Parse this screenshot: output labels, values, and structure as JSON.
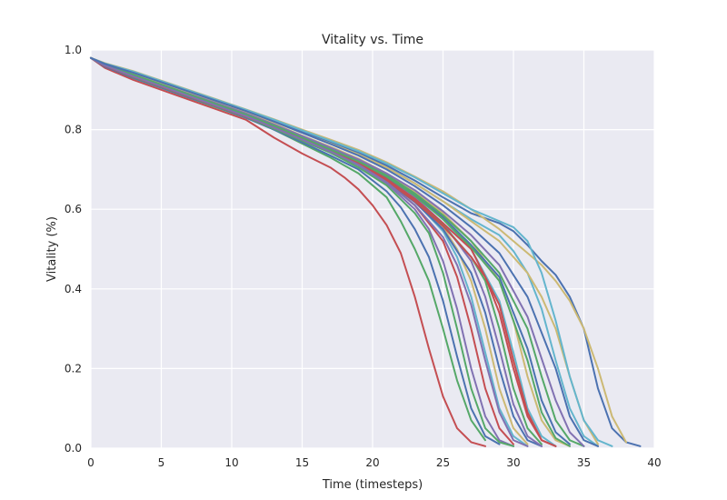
{
  "chart_data": {
    "type": "line",
    "title": "Vitality vs. Time",
    "xlabel": "Time (timesteps)",
    "ylabel": "Vitality (%)",
    "xlim": [
      0,
      40
    ],
    "ylim": [
      0.0,
      1.0
    ],
    "xticks": [
      "0",
      "5",
      "10",
      "15",
      "20",
      "25",
      "30",
      "35",
      "40"
    ],
    "yticks": [
      "0.0",
      "0.2",
      "0.4",
      "0.6",
      "0.8",
      "1.0"
    ],
    "grid": true,
    "legend": "none",
    "background": "#eaeaf2",
    "palette": [
      "#4c72b0",
      "#55a868",
      "#c44e52",
      "#8172b2",
      "#ccb974",
      "#64b5cd"
    ],
    "series": [
      {
        "color": "#c44e52",
        "x": [
          0,
          1,
          3,
          5,
          7,
          9,
          11,
          13,
          15,
          17,
          18,
          19,
          20,
          21,
          22,
          23,
          24,
          25,
          26,
          27,
          28
        ],
        "y": [
          0.98,
          0.955,
          0.925,
          0.9,
          0.875,
          0.85,
          0.825,
          0.78,
          0.74,
          0.705,
          0.68,
          0.65,
          0.61,
          0.56,
          0.49,
          0.38,
          0.25,
          0.13,
          0.05,
          0.015,
          0.005
        ]
      },
      {
        "color": "#55a868",
        "x": [
          0,
          1,
          3,
          5,
          7,
          9,
          11,
          13,
          15,
          17,
          19,
          21,
          22,
          23,
          24,
          25,
          26,
          27,
          28
        ],
        "y": [
          0.98,
          0.96,
          0.93,
          0.905,
          0.88,
          0.855,
          0.83,
          0.8,
          0.765,
          0.73,
          0.69,
          0.63,
          0.57,
          0.5,
          0.42,
          0.3,
          0.17,
          0.07,
          0.02
        ]
      },
      {
        "color": "#4c72b0",
        "x": [
          0,
          1,
          3,
          5,
          7,
          9,
          11,
          13,
          15,
          17,
          19,
          21,
          22,
          23,
          24,
          25,
          26,
          27,
          28,
          29
        ],
        "y": [
          0.98,
          0.958,
          0.93,
          0.905,
          0.88,
          0.856,
          0.83,
          0.8,
          0.768,
          0.735,
          0.7,
          0.645,
          0.605,
          0.55,
          0.48,
          0.37,
          0.23,
          0.1,
          0.03,
          0.01
        ]
      },
      {
        "color": "#8172b2",
        "x": [
          0,
          1,
          3,
          5,
          7,
          9,
          11,
          13,
          15,
          17,
          19,
          21,
          23,
          24,
          25,
          26,
          27,
          28,
          29,
          30
        ],
        "y": [
          0.98,
          0.962,
          0.935,
          0.91,
          0.885,
          0.86,
          0.835,
          0.805,
          0.775,
          0.745,
          0.71,
          0.665,
          0.6,
          0.55,
          0.47,
          0.35,
          0.2,
          0.08,
          0.02,
          0.005
        ]
      },
      {
        "color": "#55a868",
        "x": [
          0,
          1,
          3,
          5,
          7,
          9,
          11,
          13,
          15,
          17,
          19,
          21,
          23,
          24,
          25,
          26,
          27,
          28,
          29,
          30
        ],
        "y": [
          0.98,
          0.96,
          0.932,
          0.907,
          0.882,
          0.857,
          0.832,
          0.802,
          0.772,
          0.742,
          0.705,
          0.66,
          0.59,
          0.54,
          0.44,
          0.3,
          0.15,
          0.05,
          0.015,
          0.005
        ]
      },
      {
        "color": "#c44e52",
        "x": [
          0,
          1,
          3,
          5,
          7,
          9,
          11,
          13,
          15,
          17,
          19,
          21,
          23,
          25,
          26,
          27,
          28,
          29,
          30
        ],
        "y": [
          0.98,
          0.962,
          0.937,
          0.912,
          0.887,
          0.862,
          0.837,
          0.808,
          0.778,
          0.748,
          0.715,
          0.67,
          0.61,
          0.52,
          0.43,
          0.3,
          0.15,
          0.05,
          0.01
        ]
      },
      {
        "color": "#64b5cd",
        "x": [
          0,
          1,
          3,
          5,
          7,
          9,
          11,
          13,
          15,
          17,
          19,
          21,
          23,
          25,
          26,
          27,
          28,
          29,
          30,
          31
        ],
        "y": [
          0.98,
          0.963,
          0.938,
          0.913,
          0.888,
          0.863,
          0.838,
          0.81,
          0.78,
          0.75,
          0.718,
          0.675,
          0.62,
          0.545,
          0.48,
          0.38,
          0.24,
          0.1,
          0.03,
          0.005
        ]
      },
      {
        "color": "#ccb974",
        "x": [
          0,
          1,
          3,
          5,
          7,
          9,
          11,
          13,
          15,
          17,
          19,
          21,
          23,
          25,
          26,
          27,
          28,
          29,
          30,
          31
        ],
        "y": [
          0.98,
          0.964,
          0.94,
          0.915,
          0.89,
          0.865,
          0.84,
          0.812,
          0.782,
          0.752,
          0.72,
          0.68,
          0.625,
          0.555,
          0.5,
          0.42,
          0.3,
          0.15,
          0.05,
          0.01
        ]
      },
      {
        "color": "#4c72b0",
        "x": [
          0,
          1,
          3,
          5,
          7,
          9,
          11,
          13,
          15,
          17,
          19,
          21,
          23,
          25,
          27,
          28,
          29,
          30,
          31,
          32
        ],
        "y": [
          0.98,
          0.961,
          0.935,
          0.91,
          0.885,
          0.86,
          0.835,
          0.806,
          0.776,
          0.746,
          0.714,
          0.672,
          0.618,
          0.55,
          0.44,
          0.34,
          0.2,
          0.08,
          0.02,
          0.005
        ]
      },
      {
        "color": "#8172b2",
        "x": [
          0,
          1,
          3,
          5,
          7,
          9,
          11,
          13,
          15,
          17,
          19,
          21,
          23,
          25,
          27,
          28,
          29,
          30,
          31,
          32
        ],
        "y": [
          0.98,
          0.963,
          0.938,
          0.913,
          0.888,
          0.863,
          0.838,
          0.81,
          0.78,
          0.75,
          0.72,
          0.68,
          0.63,
          0.565,
          0.47,
          0.38,
          0.25,
          0.11,
          0.03,
          0.005
        ]
      },
      {
        "color": "#55a868",
        "x": [
          0,
          1,
          3,
          5,
          7,
          9,
          11,
          13,
          15,
          17,
          19,
          21,
          23,
          25,
          27,
          28,
          29,
          30,
          31,
          32
        ],
        "y": [
          0.98,
          0.962,
          0.937,
          0.912,
          0.887,
          0.862,
          0.837,
          0.809,
          0.779,
          0.749,
          0.717,
          0.676,
          0.624,
          0.56,
          0.48,
          0.42,
          0.3,
          0.15,
          0.05,
          0.01
        ]
      },
      {
        "color": "#c44e52",
        "x": [
          0,
          1,
          3,
          5,
          7,
          9,
          11,
          13,
          15,
          17,
          19,
          21,
          23,
          25,
          27,
          28,
          29,
          30,
          31,
          32,
          33
        ],
        "y": [
          0.98,
          0.96,
          0.933,
          0.908,
          0.883,
          0.858,
          0.833,
          0.805,
          0.775,
          0.745,
          0.713,
          0.672,
          0.62,
          0.558,
          0.48,
          0.43,
          0.34,
          0.2,
          0.08,
          0.02,
          0.005
        ]
      },
      {
        "color": "#64b5cd",
        "x": [
          0,
          1,
          3,
          5,
          7,
          9,
          11,
          13,
          15,
          17,
          19,
          21,
          23,
          25,
          27,
          29,
          30,
          31,
          32,
          33
        ],
        "y": [
          0.98,
          0.964,
          0.94,
          0.915,
          0.89,
          0.865,
          0.84,
          0.812,
          0.782,
          0.752,
          0.722,
          0.684,
          0.636,
          0.575,
          0.5,
          0.37,
          0.24,
          0.1,
          0.03,
          0.005
        ]
      },
      {
        "color": "#ccb974",
        "x": [
          0,
          1,
          3,
          5,
          7,
          9,
          11,
          13,
          15,
          17,
          19,
          21,
          23,
          25,
          27,
          29,
          30,
          31,
          32,
          33,
          34
        ],
        "y": [
          0.98,
          0.965,
          0.942,
          0.917,
          0.892,
          0.867,
          0.842,
          0.815,
          0.785,
          0.757,
          0.727,
          0.69,
          0.645,
          0.59,
          0.52,
          0.42,
          0.32,
          0.18,
          0.07,
          0.02,
          0.005
        ]
      },
      {
        "color": "#4c72b0",
        "x": [
          0,
          1,
          3,
          5,
          7,
          9,
          11,
          13,
          15,
          17,
          19,
          21,
          23,
          25,
          27,
          29,
          31,
          32,
          33,
          34
        ],
        "y": [
          0.98,
          0.962,
          0.936,
          0.911,
          0.886,
          0.861,
          0.836,
          0.808,
          0.778,
          0.748,
          0.718,
          0.68,
          0.635,
          0.58,
          0.51,
          0.43,
          0.25,
          0.12,
          0.04,
          0.01
        ]
      },
      {
        "color": "#55a868",
        "x": [
          0,
          1,
          3,
          5,
          7,
          9,
          11,
          13,
          15,
          17,
          19,
          21,
          23,
          25,
          27,
          29,
          31,
          32,
          33,
          34,
          35
        ],
        "y": [
          0.98,
          0.963,
          0.939,
          0.914,
          0.889,
          0.864,
          0.839,
          0.811,
          0.781,
          0.752,
          0.722,
          0.686,
          0.64,
          0.585,
          0.52,
          0.44,
          0.3,
          0.18,
          0.07,
          0.02,
          0.005
        ]
      },
      {
        "color": "#8172b2",
        "x": [
          0,
          1,
          3,
          5,
          7,
          9,
          11,
          13,
          15,
          17,
          19,
          21,
          23,
          25,
          27,
          29,
          31,
          33,
          34,
          35
        ],
        "y": [
          0.98,
          0.964,
          0.941,
          0.916,
          0.891,
          0.866,
          0.841,
          0.813,
          0.784,
          0.755,
          0.725,
          0.69,
          0.648,
          0.595,
          0.535,
          0.46,
          0.33,
          0.12,
          0.04,
          0.005
        ]
      },
      {
        "color": "#64b5cd",
        "x": [
          0,
          1,
          3,
          5,
          7,
          9,
          11,
          13,
          15,
          17,
          19,
          21,
          23,
          25,
          27,
          29,
          30,
          31,
          32,
          33,
          34,
          35,
          36
        ],
        "y": [
          0.98,
          0.965,
          0.944,
          0.92,
          0.896,
          0.872,
          0.848,
          0.822,
          0.795,
          0.768,
          0.74,
          0.706,
          0.665,
          0.62,
          0.575,
          0.535,
          0.495,
          0.44,
          0.35,
          0.22,
          0.1,
          0.03,
          0.005
        ]
      },
      {
        "color": "#ccb974",
        "x": [
          0,
          1,
          3,
          5,
          7,
          9,
          11,
          13,
          15,
          17,
          19,
          21,
          23,
          25,
          27,
          29,
          30,
          31,
          32,
          33,
          34,
          35,
          36
        ],
        "y": [
          0.98,
          0.964,
          0.942,
          0.918,
          0.894,
          0.87,
          0.846,
          0.82,
          0.792,
          0.765,
          0.738,
          0.705,
          0.665,
          0.62,
          0.57,
          0.52,
          0.48,
          0.44,
          0.38,
          0.3,
          0.18,
          0.07,
          0.01
        ]
      },
      {
        "color": "#4c72b0",
        "x": [
          0,
          1,
          3,
          5,
          7,
          9,
          11,
          13,
          15,
          17,
          19,
          21,
          23,
          25,
          27,
          29,
          30,
          31,
          32,
          33,
          34,
          35,
          36,
          37,
          38,
          39
        ],
        "y": [
          0.98,
          0.966,
          0.945,
          0.921,
          0.897,
          0.873,
          0.849,
          0.823,
          0.796,
          0.77,
          0.743,
          0.71,
          0.672,
          0.63,
          0.59,
          0.565,
          0.545,
          0.51,
          0.47,
          0.435,
          0.38,
          0.3,
          0.15,
          0.05,
          0.015,
          0.005
        ]
      },
      {
        "color": "#ccb974",
        "x": [
          0,
          1,
          3,
          5,
          7,
          9,
          11,
          13,
          15,
          17,
          19,
          21,
          23,
          25,
          27,
          29,
          30,
          31,
          32,
          33,
          34,
          35,
          36,
          37,
          38
        ],
        "y": [
          0.98,
          0.967,
          0.947,
          0.923,
          0.899,
          0.875,
          0.851,
          0.826,
          0.8,
          0.775,
          0.749,
          0.718,
          0.682,
          0.645,
          0.6,
          0.55,
          0.52,
          0.49,
          0.46,
          0.42,
          0.37,
          0.3,
          0.2,
          0.08,
          0.015
        ]
      },
      {
        "color": "#64b5cd",
        "x": [
          0,
          1,
          3,
          5,
          7,
          9,
          11,
          13,
          15,
          17,
          19,
          21,
          23,
          25,
          27,
          29,
          30,
          31,
          32,
          33,
          34,
          35,
          36,
          37
        ],
        "y": [
          0.98,
          0.966,
          0.946,
          0.922,
          0.898,
          0.874,
          0.85,
          0.825,
          0.798,
          0.772,
          0.746,
          0.715,
          0.68,
          0.64,
          0.6,
          0.57,
          0.555,
          0.52,
          0.44,
          0.32,
          0.18,
          0.07,
          0.02,
          0.005
        ]
      },
      {
        "color": "#c44e52",
        "x": [
          0,
          1,
          3,
          5,
          7,
          9,
          11,
          13,
          15,
          17,
          19,
          21,
          23,
          25,
          27,
          29,
          30,
          31,
          32,
          33
        ],
        "y": [
          0.98,
          0.962,
          0.935,
          0.91,
          0.885,
          0.86,
          0.835,
          0.807,
          0.777,
          0.747,
          0.716,
          0.676,
          0.626,
          0.565,
          0.5,
          0.36,
          0.22,
          0.09,
          0.02,
          0.005
        ]
      },
      {
        "color": "#55a868",
        "x": [
          0,
          1,
          3,
          5,
          7,
          9,
          11,
          13,
          15,
          17,
          19,
          21,
          23,
          25,
          27,
          29,
          31,
          32,
          33,
          34
        ],
        "y": [
          0.98,
          0.963,
          0.938,
          0.913,
          0.888,
          0.863,
          0.838,
          0.81,
          0.78,
          0.75,
          0.72,
          0.682,
          0.634,
          0.575,
          0.505,
          0.42,
          0.22,
          0.09,
          0.025,
          0.005
        ]
      },
      {
        "color": "#8172b2",
        "x": [
          0,
          1,
          3,
          5,
          7,
          9,
          11,
          13,
          15,
          17,
          19,
          21,
          23,
          25,
          26,
          27,
          28,
          29,
          30,
          31
        ],
        "y": [
          0.98,
          0.961,
          0.934,
          0.909,
          0.884,
          0.859,
          0.834,
          0.805,
          0.775,
          0.745,
          0.712,
          0.668,
          0.61,
          0.53,
          0.46,
          0.36,
          0.22,
          0.09,
          0.02,
          0.005
        ]
      },
      {
        "color": "#4c72b0",
        "x": [
          0,
          1,
          3,
          5,
          7,
          9,
          11,
          13,
          15,
          17,
          19,
          21,
          23,
          25,
          27,
          29,
          31,
          33,
          34,
          35,
          36
        ],
        "y": [
          0.98,
          0.965,
          0.943,
          0.919,
          0.895,
          0.871,
          0.847,
          0.82,
          0.792,
          0.764,
          0.735,
          0.7,
          0.658,
          0.61,
          0.555,
          0.49,
          0.38,
          0.2,
          0.08,
          0.02,
          0.005
        ]
      }
    ]
  }
}
